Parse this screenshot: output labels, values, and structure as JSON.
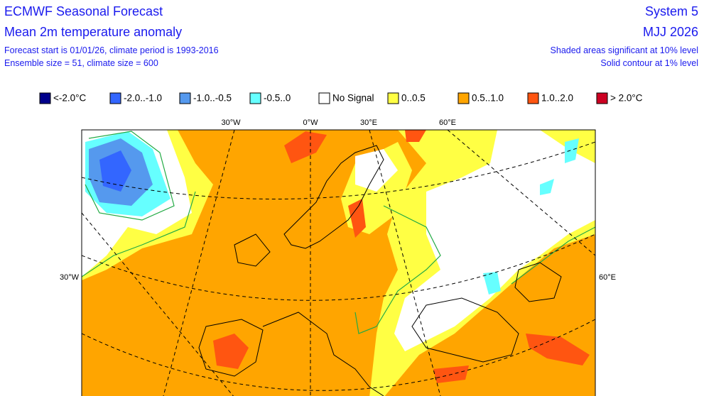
{
  "header": {
    "title": "ECMWF Seasonal Forecast",
    "subtitle": "Mean 2m temperature anomaly",
    "forecast_start": "Forecast start is 01/01/26, climate period is 1993-2016",
    "ensemble": "Ensemble size = 51, climate size = 600",
    "system": "System 5",
    "period": "MJJ 2026",
    "shading_note": "Shaded areas significant at 10% level",
    "contour_note": "Solid contour at 1% level"
  },
  "legend": [
    {
      "label": "<-2.0°C",
      "color": "#00008b"
    },
    {
      "label": "-2.0..-1.0",
      "color": "#3366ff"
    },
    {
      "label": "-1.0..-0.5",
      "color": "#5599ee"
    },
    {
      "label": "-0.5..0",
      "color": "#66ffff"
    },
    {
      "label": "No Signal",
      "color": "#ffffff"
    },
    {
      "label": "0..0.5",
      "color": "#ffff44"
    },
    {
      "label": "0.5..1.0",
      "color": "#ffa500"
    },
    {
      "label": "1.0..2.0",
      "color": "#ff5511"
    },
    {
      "label": "> 2.0°C",
      "color": "#cc0022"
    }
  ],
  "graticule_labels": {
    "top": [
      "30°W",
      "0°W",
      "30°E",
      "60°E"
    ],
    "left": "30°W",
    "right": "60°E"
  }
}
